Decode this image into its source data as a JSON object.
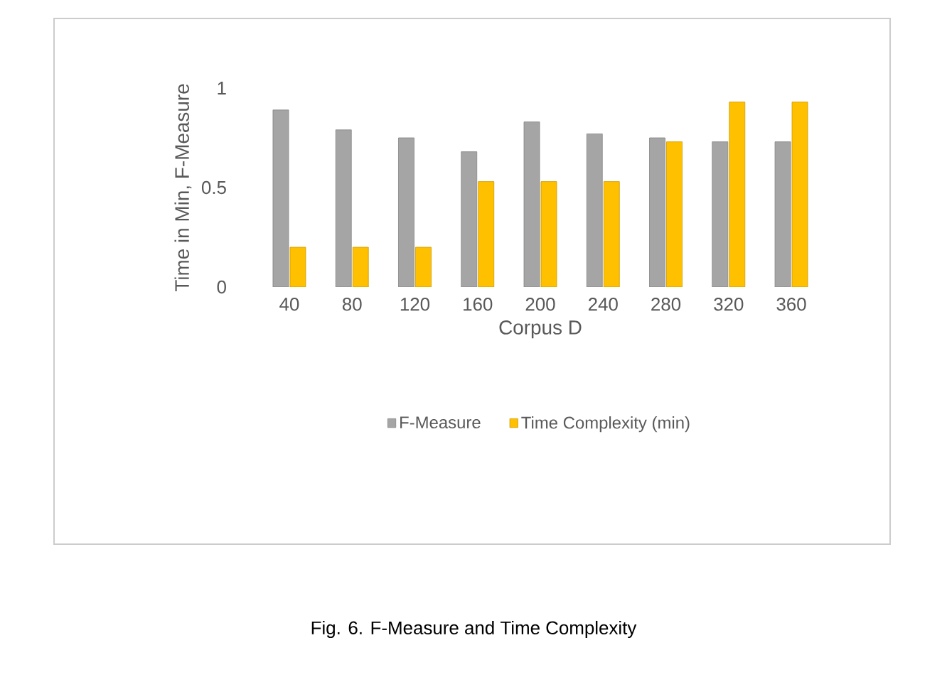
{
  "chart_data": {
    "type": "bar",
    "xlabel": "Corpus D",
    "ylabel": "Time in Min, F-Measure",
    "categories": [
      "40",
      "80",
      "120",
      "160",
      "200",
      "240",
      "280",
      "320",
      "360"
    ],
    "series": [
      {
        "name": "F-Measure",
        "color": "#a5a5a5",
        "values": [
          0.89,
          0.79,
          0.75,
          0.68,
          0.83,
          0.77,
          0.75,
          0.73,
          0.73
        ]
      },
      {
        "name": "Time Complexity (min)",
        "color": "#ffc000",
        "values": [
          0.2,
          0.2,
          0.2,
          0.53,
          0.53,
          0.53,
          0.73,
          0.93,
          0.93
        ]
      }
    ],
    "ylim": [
      0,
      1
    ],
    "yticks": [
      0,
      0.5,
      1
    ],
    "legend": "bottom",
    "grid": false,
    "annotations": [
      "Fig. 6. F-Measure and Time Complexity"
    ]
  }
}
